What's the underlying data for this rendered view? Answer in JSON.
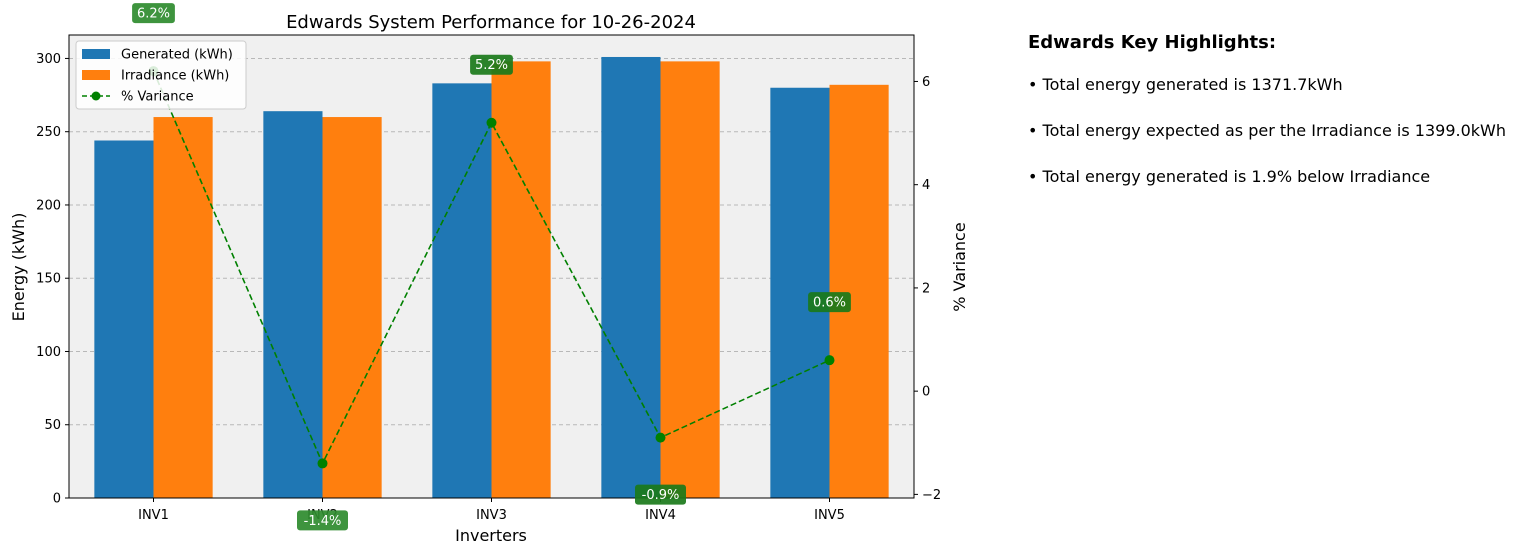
{
  "chart_data": {
    "type": "bar",
    "title": "Edwards System Performance for 10-26-2024",
    "xlabel": "Inverters",
    "ylabel": "Energy (kWh)",
    "y2label": "% Variance",
    "categories": [
      "INV1",
      "INV2",
      "INV3",
      "INV4",
      "INV5"
    ],
    "series": [
      {
        "name": "Generated (kWh)",
        "type": "bar",
        "color": "#1f77b4",
        "values": [
          244,
          264,
          283,
          301,
          280
        ]
      },
      {
        "name": "Irradiance (kWh)",
        "type": "bar",
        "color": "#ff7f0e",
        "values": [
          260,
          260,
          298,
          298,
          282
        ]
      },
      {
        "name": "% Variance",
        "type": "line",
        "axis": "right",
        "color": "#008000",
        "style": "dashed",
        "marker": "circle",
        "values": [
          6.2,
          -1.4,
          5.2,
          -0.9,
          0.6
        ]
      }
    ],
    "variance_labels": [
      "6.2%",
      "-1.4%",
      "5.2%",
      "-0.9%",
      "0.6%"
    ],
    "ylim": [
      0,
      316
    ],
    "yticks": [
      0,
      50,
      100,
      150,
      200,
      250,
      300
    ],
    "y2lim": [
      -2.07,
      6.9
    ],
    "y2ticks": [
      -2,
      0,
      2,
      4,
      6
    ],
    "grid": "horizontal dashed",
    "legend": "top-left",
    "plot_background": "#f0f0f0"
  },
  "highlights": {
    "title": "Edwards Key Highlights:",
    "items": [
      "• Total energy generated is 1371.7kWh",
      "• Total energy expected as per the Irradiance is 1399.0kWh",
      "• Total energy generated is 1.9% below Irradiance"
    ]
  }
}
